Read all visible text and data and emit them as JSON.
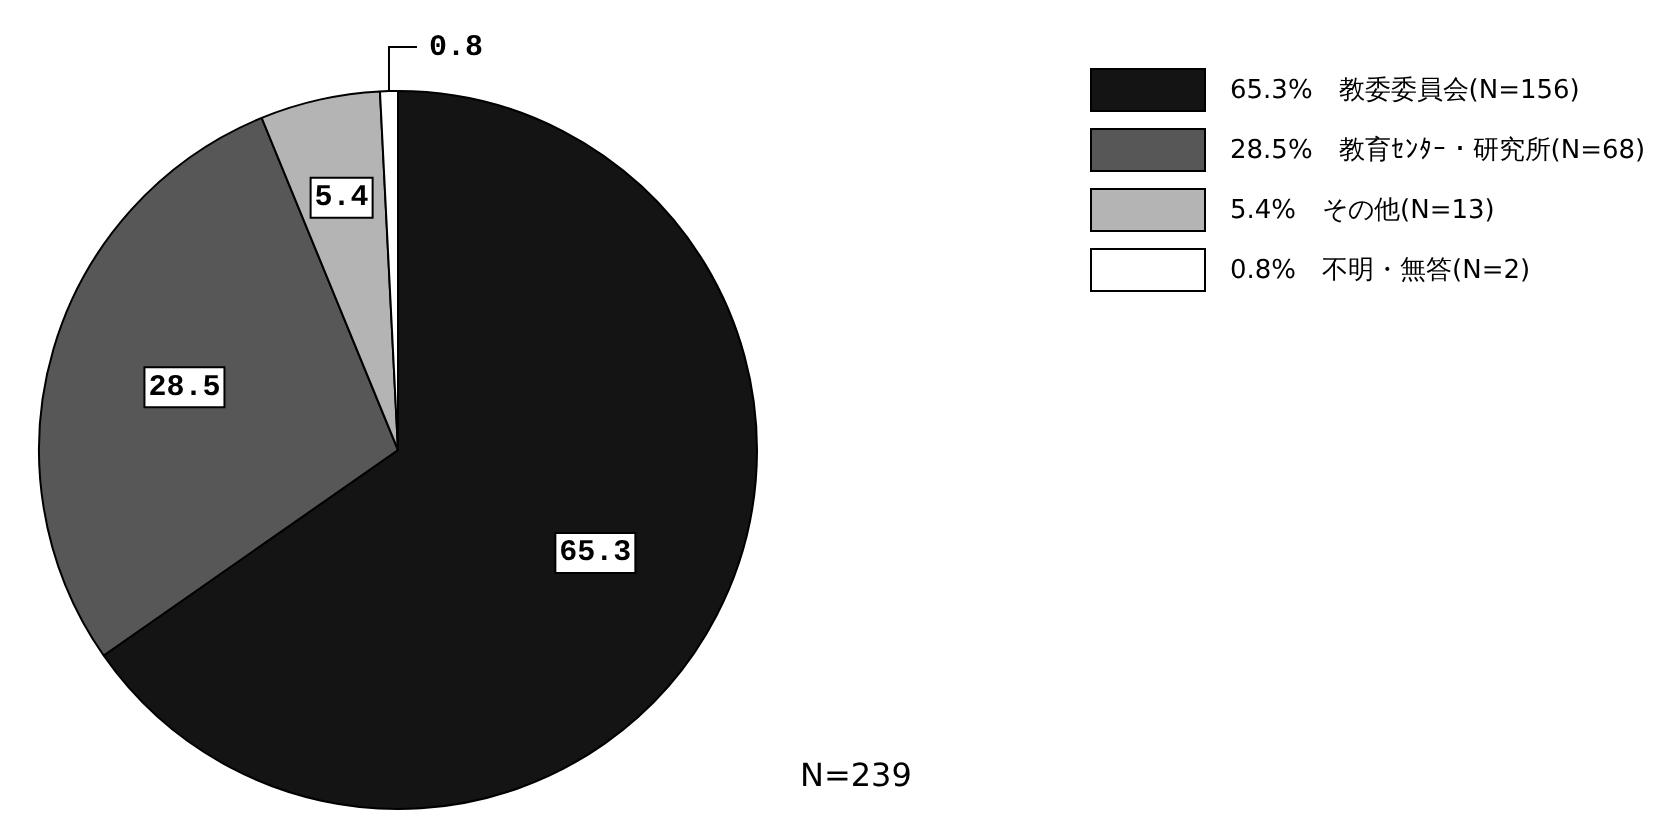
{
  "chart_data": {
    "type": "pie",
    "categories": [
      "65.3%　教委委員会(N=156)",
      "28.5%　教育ｾﾝﾀｰ・研究所(N=68)",
      "5.4%　その他(N=13)",
      "0.8%　不明・無答(N=2)"
    ],
    "values": [
      65.3,
      28.5,
      5.4,
      0.8
    ],
    "colors": [
      "#141414",
      "#575757",
      "#b4b4b4",
      "#ffffff"
    ],
    "data_labels": true,
    "legend": "right",
    "annotations": [
      "N=239"
    ]
  }
}
